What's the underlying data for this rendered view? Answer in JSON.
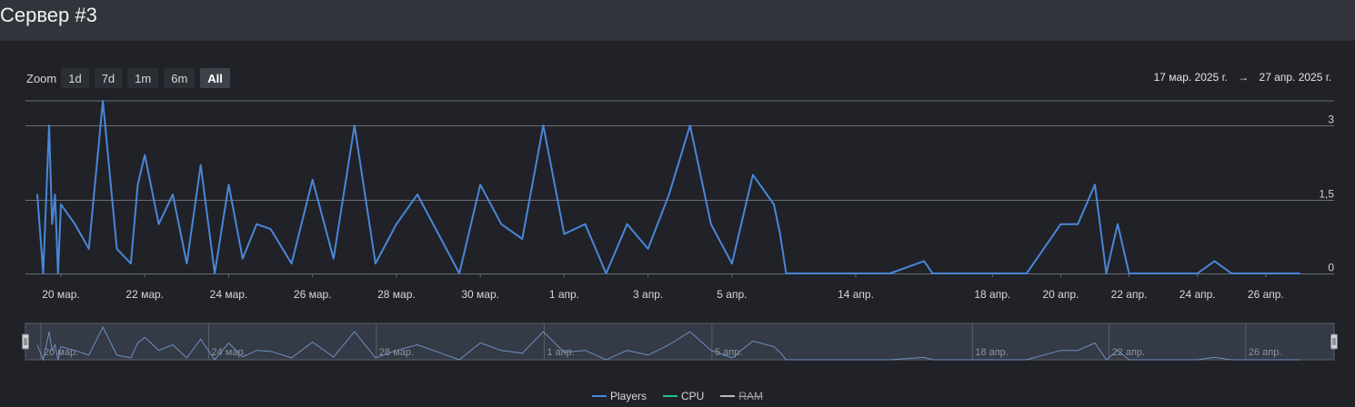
{
  "page": {
    "title": "Сервер #3"
  },
  "toolbar": {
    "zoom_label": "Zoom",
    "buttons": [
      {
        "label": "1d",
        "active": false
      },
      {
        "label": "7d",
        "active": false
      },
      {
        "label": "1m",
        "active": false
      },
      {
        "label": "6m",
        "active": false
      },
      {
        "label": "All",
        "active": true
      }
    ]
  },
  "date_range": {
    "from": "17 мар. 2025 г.",
    "arrow": "→",
    "to": "27 апр. 2025 г."
  },
  "colors": {
    "players": "#4a86d8",
    "cpu": "#1ec38a",
    "ram": "#bbbbbb",
    "grid": "#6a6e75"
  },
  "legend": [
    {
      "name": "Players",
      "color": "#4a86d8",
      "hidden": false
    },
    {
      "name": "CPU",
      "color": "#1ec38a",
      "hidden": false
    },
    {
      "name": "RAM",
      "color": "#bbbbbb",
      "hidden": true
    }
  ],
  "chart_data": {
    "type": "line",
    "x_ticks": [
      "20 мар.",
      "22 мар.",
      "24 мар.",
      "26 мар.",
      "28 мар.",
      "30 мар.",
      "1 апр.",
      "3 апр.",
      "5 апр.",
      "14 апр.",
      "18 апр.",
      "20 апр.",
      "22 апр.",
      "24 апр.",
      "26 апр."
    ],
    "y_ticks": [
      "3",
      "1,5",
      "0"
    ],
    "ylim": [
      0,
      3.5
    ],
    "navigator_ticks": [
      "20 мар.",
      "24 мар.",
      "28 мар.",
      "1 апр.",
      "5 апр.",
      "18 апр.",
      "22 апр.",
      "26 апр."
    ],
    "series": [
      {
        "name": "Players",
        "x": [
          "2025-03-18",
          "2025-03-18T12:00",
          "2025-03-19",
          "2025-03-19T06:00",
          "2025-03-19T12:00",
          "2025-03-19T18:00",
          "2025-03-20",
          "2025-03-20T08:00",
          "2025-03-20T16:00",
          "2025-03-21",
          "2025-03-21T08:00",
          "2025-03-21T16:00",
          "2025-03-21T20:00",
          "2025-03-22",
          "2025-03-22T08:00",
          "2025-03-22T16:00",
          "2025-03-23",
          "2025-03-23T08:00",
          "2025-03-23T16:00",
          "2025-03-24",
          "2025-03-24T08:00",
          "2025-03-24T16:00",
          "2025-03-25",
          "2025-03-25T12:00",
          "2025-03-26",
          "2025-03-26T12:00",
          "2025-03-27",
          "2025-03-27T12:00",
          "2025-03-28",
          "2025-03-28T12:00",
          "2025-03-29",
          "2025-03-29T12:00",
          "2025-03-30",
          "2025-03-30T12:00",
          "2025-03-31",
          "2025-03-31T12:00",
          "2025-04-01",
          "2025-04-01T12:00",
          "2025-04-02",
          "2025-04-02T12:00",
          "2025-04-03",
          "2025-04-03T12:00",
          "2025-04-04",
          "2025-04-04T12:00",
          "2025-04-05",
          "2025-04-05T12:00",
          "2025-04-06",
          "2025-04-06T12:00",
          "2025-04-07",
          "2025-04-10",
          "2025-04-13",
          "2025-04-15",
          "2025-04-16",
          "2025-04-16T06:00",
          "2025-04-17",
          "2025-04-19",
          "2025-04-20",
          "2025-04-20T12:00",
          "2025-04-21",
          "2025-04-21T08:00",
          "2025-04-21T16:00",
          "2025-04-22",
          "2025-04-23",
          "2025-04-24",
          "2025-04-24T12:00",
          "2025-04-25",
          "2025-04-26",
          "2025-04-27"
        ],
        "y": [
          1.6,
          0,
          3,
          1,
          1.6,
          0,
          1.4,
          1,
          0.5,
          3.5,
          0.5,
          0.2,
          1.8,
          2.4,
          1,
          1.6,
          0.2,
          2.2,
          0,
          1.8,
          0.3,
          1,
          0.9,
          0.2,
          1.9,
          0.3,
          3,
          0.2,
          1,
          1.6,
          0.8,
          0,
          1.8,
          1,
          0.7,
          3,
          0.8,
          1,
          0,
          1,
          0.5,
          1.6,
          3,
          1,
          0.2,
          2,
          1.4,
          0.8,
          0,
          0,
          0,
          0,
          0.25,
          0,
          0,
          0,
          1,
          1,
          1.8,
          0,
          1,
          0,
          0,
          0,
          0.25,
          0,
          0,
          0
        ]
      },
      {
        "name": "CPU",
        "x": [],
        "y": []
      },
      {
        "name": "RAM",
        "x": [],
        "y": []
      }
    ]
  }
}
